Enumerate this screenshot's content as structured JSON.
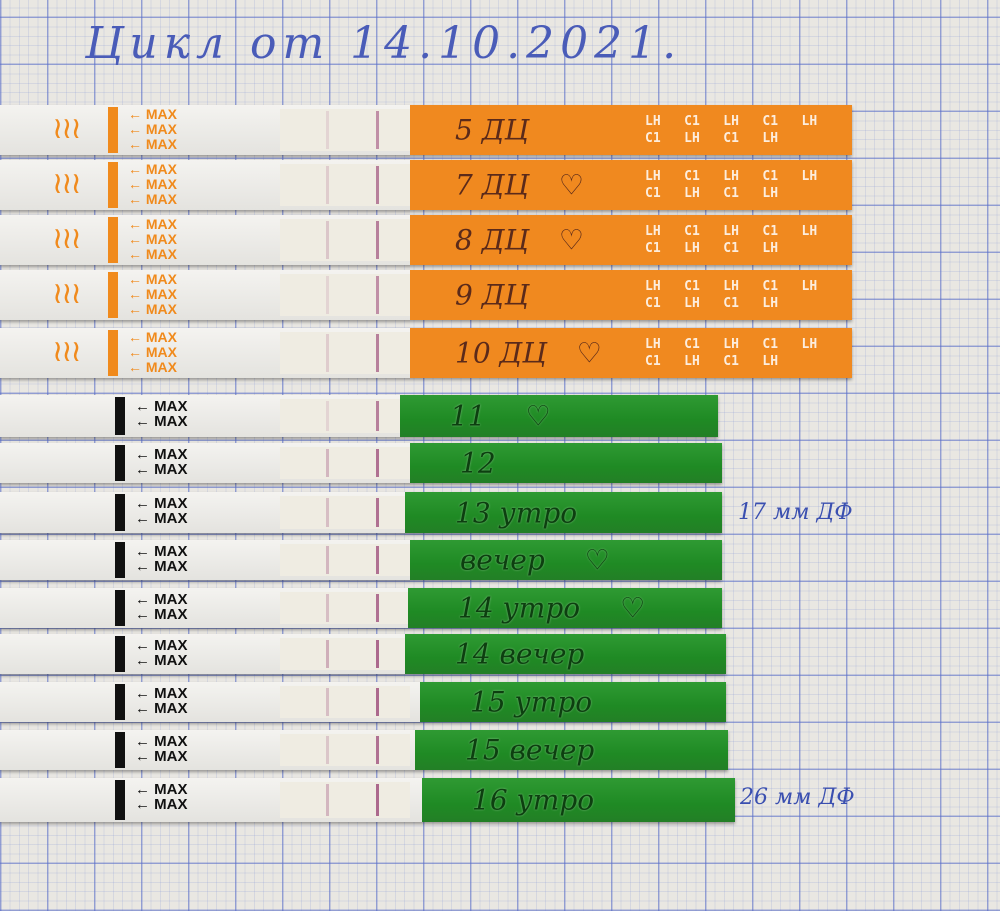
{
  "title": "Цикл от 14.10.2021.",
  "colors": {
    "orange_handle": "#f0891f",
    "green_handle": "#1f8a24",
    "test_line": "#a0527e",
    "grid": "#5a6ec8",
    "pen": "#3a4fb0"
  },
  "strip_marking": "← MAX",
  "orange_brand_text": "LH   C1   LH   C1   LH   C1   LH   C1   LH",
  "orange_strips": [
    {
      "label": "5 ДЦ",
      "heart": false,
      "test_line_intensity": 0.15,
      "control_line_intensity": 0.6
    },
    {
      "label": "7 ДЦ",
      "heart": true,
      "test_line_intensity": 0.2,
      "control_line_intensity": 0.7
    },
    {
      "label": "8 ДЦ",
      "heart": true,
      "test_line_intensity": 0.25,
      "control_line_intensity": 0.7
    },
    {
      "label": "9 ДЦ",
      "heart": false,
      "test_line_intensity": 0.15,
      "control_line_intensity": 0.6
    },
    {
      "label": "10 ДЦ",
      "heart": true,
      "test_line_intensity": 0.2,
      "control_line_intensity": 0.7
    }
  ],
  "green_strips": [
    {
      "label": "11",
      "heart": true,
      "test_line_intensity": 0.15,
      "control_line_intensity": 0.7
    },
    {
      "label": "12",
      "heart": false,
      "test_line_intensity": 0.35,
      "control_line_intensity": 0.8
    },
    {
      "label": "13 утро",
      "heart": false,
      "test_line_intensity": 0.3,
      "control_line_intensity": 0.8
    },
    {
      "label": "вечер",
      "heart": true,
      "test_line_intensity": 0.35,
      "control_line_intensity": 0.8
    },
    {
      "label": "14 утро",
      "heart": true,
      "test_line_intensity": 0.3,
      "control_line_intensity": 0.8
    },
    {
      "label": "14 вечер",
      "heart": false,
      "test_line_intensity": 0.4,
      "control_line_intensity": 0.85
    },
    {
      "label": "15 утро",
      "heart": false,
      "test_line_intensity": 0.3,
      "control_line_intensity": 0.85
    },
    {
      "label": "15 вечер",
      "heart": false,
      "test_line_intensity": 0.25,
      "control_line_intensity": 0.8
    },
    {
      "label": "16 утро",
      "heart": false,
      "test_line_intensity": 0.35,
      "control_line_intensity": 0.85
    }
  ],
  "notes": [
    {
      "text": "17 мм ДФ"
    },
    {
      "text": "26 мм ДФ"
    }
  ]
}
